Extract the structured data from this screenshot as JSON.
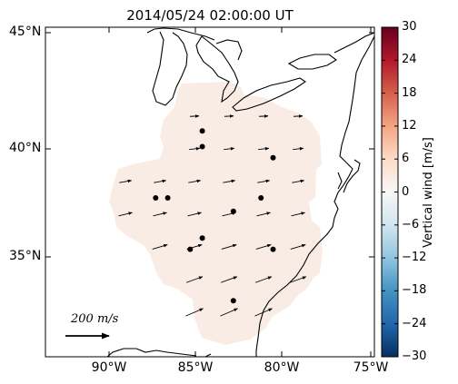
{
  "title": "2014/05/24 02:00:00 UT",
  "axes": {
    "lat_ticks": [
      "45°N",
      "40°N",
      "35°N"
    ],
    "lon_ticks": [
      "90°W",
      "85°W",
      "80°W",
      "75°W"
    ]
  },
  "colorbar": {
    "label": "Vertical wind [m/s]",
    "ticks": [
      "30",
      "24",
      "18",
      "12",
      "6",
      "0",
      "−6",
      "−12",
      "−18",
      "−24",
      "−30"
    ],
    "range": [
      -30,
      30
    ],
    "cmap": "RdBu_r",
    "colors": [
      "#67001f",
      "#b2182b",
      "#d6604d",
      "#f4a582",
      "#fddbc7",
      "#f7f7f7",
      "#d1e5f0",
      "#92c5de",
      "#4393c3",
      "#2166ac",
      "#053061"
    ]
  },
  "field": {
    "fill_color": "#f8ece4",
    "value_ms": 1
  },
  "reference_arrow": {
    "label": "200 m/s",
    "value": 200,
    "unit": "m/s"
  },
  "stations": [
    {
      "lon": -84.6,
      "lat": 40.6
    },
    {
      "lon": -84.6,
      "lat": 39.9
    },
    {
      "lon": -80.5,
      "lat": 39.4
    },
    {
      "lon": -87.3,
      "lat": 37.6
    },
    {
      "lon": -86.6,
      "lat": 37.6
    },
    {
      "lon": -81.2,
      "lat": 37.6
    },
    {
      "lon": -82.8,
      "lat": 37.0
    },
    {
      "lon": -84.6,
      "lat": 35.8
    },
    {
      "lon": -85.3,
      "lat": 35.3
    },
    {
      "lon": -80.5,
      "lat": 35.3
    },
    {
      "lon": -82.8,
      "lat": 33.0
    }
  ]
}
